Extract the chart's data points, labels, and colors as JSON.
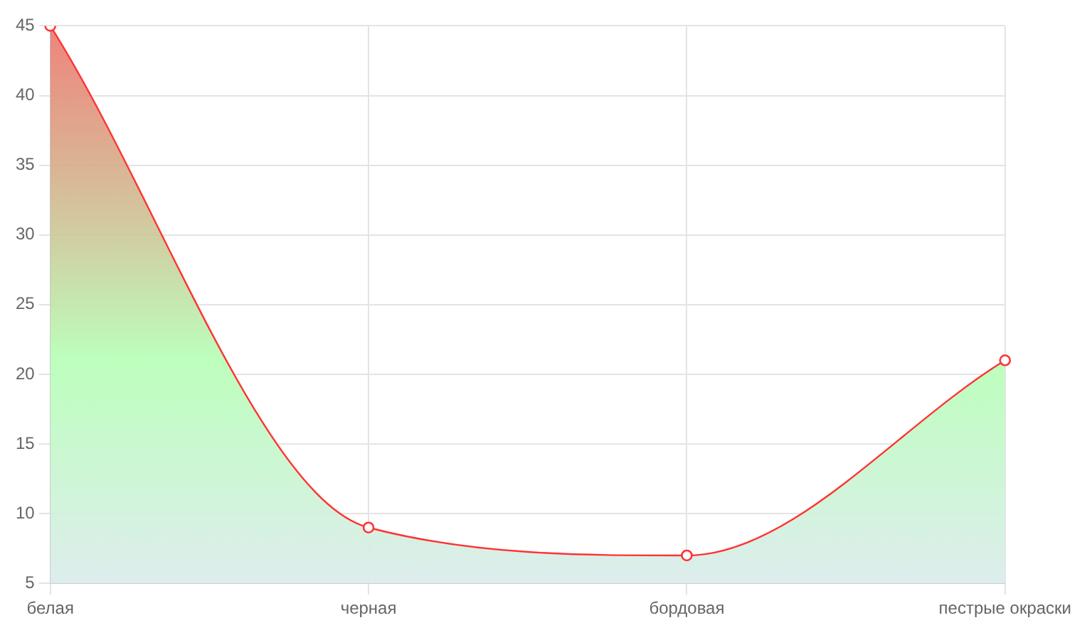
{
  "chart_data": {
    "type": "area",
    "categories": [
      "белая",
      "черная",
      "бордовая",
      "пестрые окраски"
    ],
    "series": [
      {
        "color": "#ff3333",
        "values": [
          45,
          9,
          7,
          21
        ]
      }
    ],
    "ylim": [
      5,
      45
    ],
    "yticks": [
      5,
      10,
      15,
      20,
      25,
      30,
      35,
      40,
      45
    ],
    "grid": true,
    "marker": "circle",
    "line_style": "solid"
  }
}
